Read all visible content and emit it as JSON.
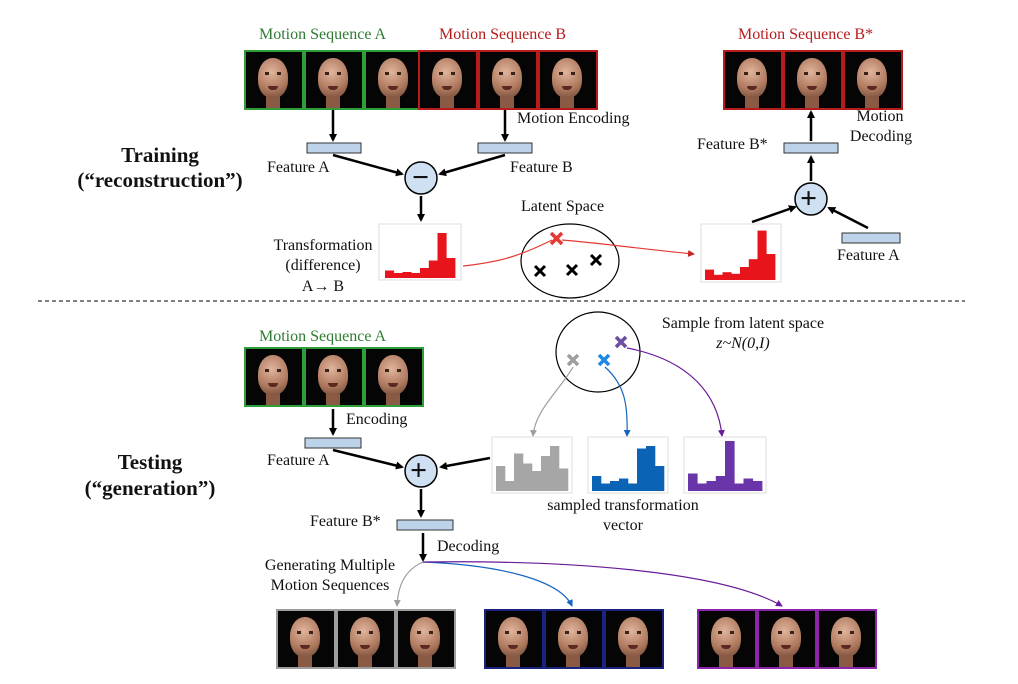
{
  "training": {
    "title_line1": "Training",
    "title_line2": "(“reconstruction”)",
    "seq_a_label": "Motion Sequence A",
    "seq_b_label": "Motion Sequence B",
    "seq_bstar_label": "Motion Sequence B*",
    "motion_encoding": "Motion Encoding",
    "feature_a": "Feature A",
    "feature_b": "Feature B",
    "feature_bstar": "Feature B*",
    "motion_decoding_1": "Motion",
    "motion_decoding_2": "Decoding",
    "feature_a_right": "Feature A",
    "latent_space": "Latent Space",
    "transformation_1": "Transformation",
    "transformation_2": "(difference)",
    "transformation_3": "A→ B",
    "minus_symbol": "−",
    "plus_symbol": "+"
  },
  "testing": {
    "title_line1": "Testing",
    "title_line2": "(“generation”)",
    "seq_a_label": "Motion Sequence A",
    "encoding": "Encoding",
    "feature_a": "Feature A",
    "feature_bstar": "Feature B*",
    "decoding": "Decoding",
    "sample_1": "Sample from latent space",
    "sample_2": "z~N(0,I)",
    "sampled_1": "sampled transformation",
    "sampled_2": "vector",
    "generating_1": "Generating Multiple",
    "generating_2": "Motion Sequences",
    "plus_symbol": "+"
  },
  "colors": {
    "green": "#2e7d32",
    "red": "#c62828",
    "gray": "#9e9e9e",
    "blue": "#1565c0",
    "purple": "#6a1b9a",
    "navy": "#1a237e",
    "pink_purple": "#8e24aa",
    "feature_fill": "#bcd3ea",
    "node_fill": "#cfe0f2"
  },
  "histograms": {
    "train_diff": [
      0.15,
      0.1,
      0.12,
      0.1,
      0.2,
      0.35,
      0.9,
      0.4
    ],
    "train_recon": [
      0.2,
      0.1,
      0.15,
      0.12,
      0.25,
      0.4,
      0.95,
      0.5
    ],
    "sample_gray": [
      0.5,
      0.2,
      0.75,
      0.55,
      0.4,
      0.7,
      0.9,
      0.45
    ],
    "sample_blue": [
      0.3,
      0.15,
      0.2,
      0.25,
      0.15,
      0.85,
      0.9,
      0.5
    ],
    "sample_purple": [
      0.35,
      0.15,
      0.2,
      0.3,
      1.0,
      0.15,
      0.25,
      0.2
    ]
  }
}
